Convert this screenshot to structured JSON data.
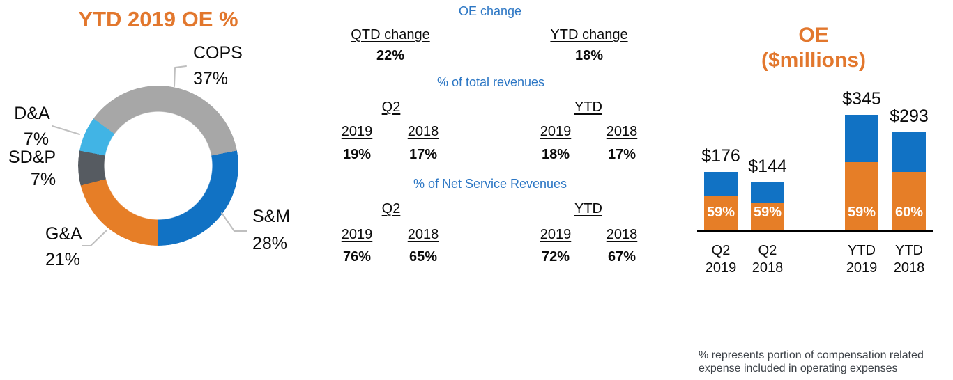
{
  "colors": {
    "accent_orange": "#e2772d",
    "bar_orange": "#e67e27",
    "bar_blue": "#1172c4",
    "donut_gray": "#a7a7a7",
    "donut_dark_gray": "#565b61",
    "donut_light_blue": "#41b4e5",
    "table_heading_blue": "#2b76c4",
    "leader_line_gray": "#bfbfbf"
  },
  "chart_data": [
    {
      "type": "pie",
      "subtype": "donut",
      "title": "YTD 2019 OE %",
      "start_angle_deg": -54,
      "segments": [
        {
          "label": "COPS",
          "value": 37,
          "pct_label": "37%",
          "color": "#a7a7a7"
        },
        {
          "label": "S&M",
          "value": 28,
          "pct_label": "28%",
          "color": "#1172c4"
        },
        {
          "label": "G&A",
          "value": 21,
          "pct_label": "21%",
          "color": "#e67e27"
        },
        {
          "label": "SD&P",
          "value": 7,
          "pct_label": "7%",
          "color": "#565b61"
        },
        {
          "label": "D&A",
          "value": 7,
          "pct_label": "7%",
          "color": "#41b4e5"
        }
      ]
    },
    {
      "type": "table",
      "title": "OE change",
      "change_row": {
        "qtd_label": "QTD change",
        "qtd_value": "22%",
        "ytd_label": "YTD change",
        "ytd_value": "18%"
      },
      "sections": [
        {
          "title": "% of total revenues",
          "group_labels": [
            "Q2",
            "YTD"
          ],
          "year_labels": [
            "2019",
            "2018",
            "2019",
            "2018"
          ],
          "values": [
            "19%",
            "17%",
            "18%",
            "17%"
          ]
        },
        {
          "title": "% of Net Service Revenues",
          "group_labels": [
            "Q2",
            "YTD"
          ],
          "year_labels": [
            "2019",
            "2018",
            "2019",
            "2018"
          ],
          "values": [
            "76%",
            "65%",
            "72%",
            "67%"
          ]
        }
      ]
    },
    {
      "type": "bar",
      "subtype": "stacked",
      "title": "OE ($millions)",
      "title_line1": "OE",
      "title_line2": "($millions)",
      "ylim": [
        0,
        345
      ],
      "bars": [
        {
          "category_line1": "Q2",
          "category_line2": "2019",
          "total": 176,
          "total_label": "$176",
          "comp_pct": 59,
          "pct_label": "59%"
        },
        {
          "category_line1": "Q2",
          "category_line2": "2018",
          "total": 144,
          "total_label": "$144",
          "comp_pct": 59,
          "pct_label": "59%"
        },
        {
          "category_line1": "YTD",
          "category_line2": "2019",
          "total": 345,
          "total_label": "$345",
          "comp_pct": 59,
          "pct_label": "59%"
        },
        {
          "category_line1": "YTD",
          "category_line2": "2018",
          "total": 293,
          "total_label": "$293",
          "comp_pct": 60,
          "pct_label": "60%"
        }
      ],
      "footnote_line1": "% represents portion of compensation related",
      "footnote_line2": "expense included in operating expenses"
    }
  ]
}
